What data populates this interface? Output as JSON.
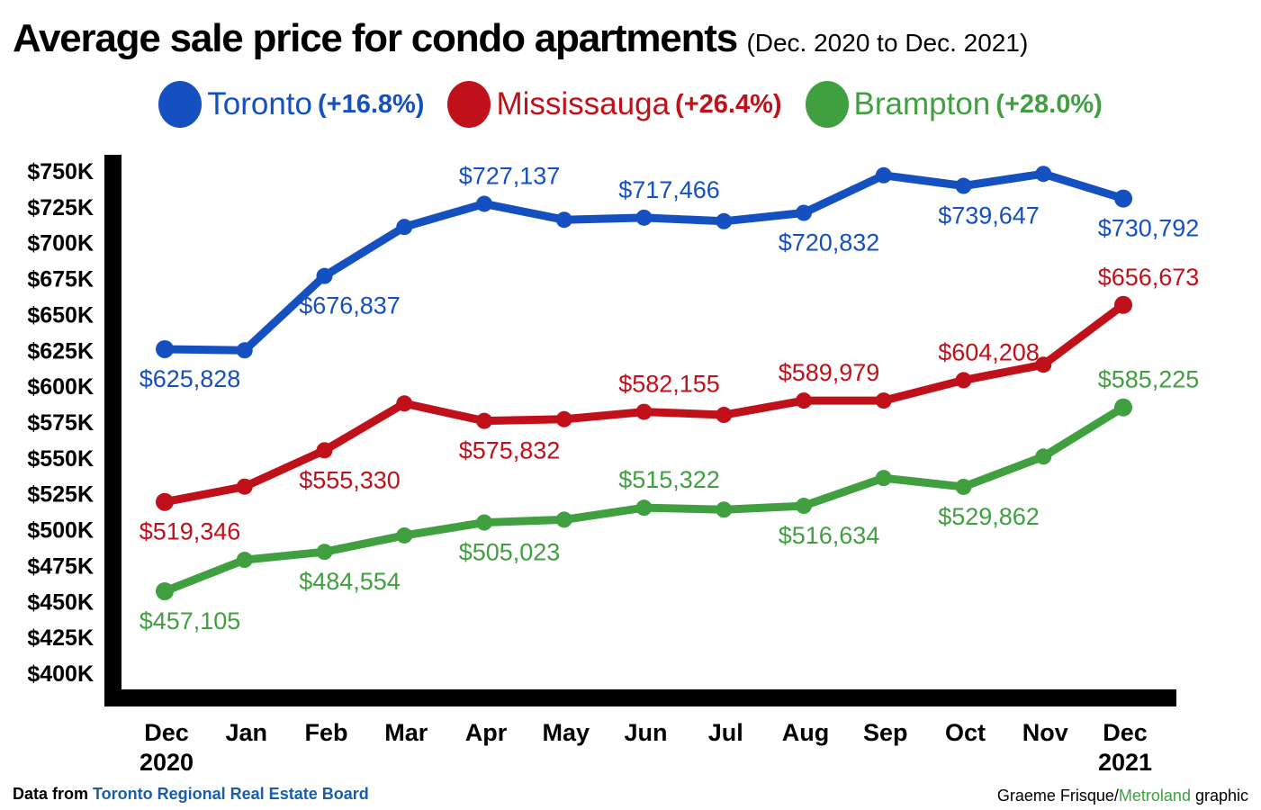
{
  "header": {
    "title": "Average sale price for condo apartments",
    "subtitle": "(Dec. 2020 to Dec. 2021)"
  },
  "legend": [
    {
      "name": "Toronto",
      "change": "(+16.8%)",
      "color": "#1450c0"
    },
    {
      "name": "Mississauga",
      "change": "(+26.4%)",
      "color": "#c0101a"
    },
    {
      "name": "Brampton",
      "change": "(+28.0%)",
      "color": "#40a040"
    }
  ],
  "footer": {
    "source_prefix": "Data from ",
    "source_name": "Toronto Regional Real Estate Board",
    "credit_author": "Graeme Frisque/",
    "credit_brand": "Metroland",
    "credit_suffix": " graphic"
  },
  "chart_data": {
    "type": "line",
    "title": "Average sale price for condo apartments",
    "subtitle": "(Dec. 2020 to Dec. 2021)",
    "xlabel": "",
    "ylabel": "",
    "categories": [
      "Dec 2020",
      "Jan",
      "Feb",
      "Mar",
      "Apr",
      "May",
      "Jun",
      "Jul",
      "Aug",
      "Sep",
      "Oct",
      "Nov",
      "Dec 2021"
    ],
    "x_tick_labels": [
      {
        "line1": "Dec",
        "line2": "2020"
      },
      {
        "line1": "Jan",
        "line2": ""
      },
      {
        "line1": "Feb",
        "line2": ""
      },
      {
        "line1": "Mar",
        "line2": ""
      },
      {
        "line1": "Apr",
        "line2": ""
      },
      {
        "line1": "May",
        "line2": ""
      },
      {
        "line1": "Jun",
        "line2": ""
      },
      {
        "line1": "Jul",
        "line2": ""
      },
      {
        "line1": "Aug",
        "line2": ""
      },
      {
        "line1": "Sep",
        "line2": ""
      },
      {
        "line1": "Oct",
        "line2": ""
      },
      {
        "line1": "Nov",
        "line2": ""
      },
      {
        "line1": "Dec",
        "line2": "2021"
      }
    ],
    "ylim": [
      400000,
      750000
    ],
    "y_ticks": [
      750000,
      725000,
      700000,
      675000,
      650000,
      625000,
      600000,
      575000,
      550000,
      525000,
      500000,
      475000,
      450000,
      425000,
      400000
    ],
    "y_tick_labels": [
      "$750K",
      "$725K",
      "$700K",
      "$675K",
      "$650K",
      "$625K",
      "$600K",
      "$575K",
      "$550K",
      "$525K",
      "$500K",
      "$475K",
      "$450K",
      "$425K",
      "$400K"
    ],
    "grid": false,
    "legend_position": "top-center",
    "series": [
      {
        "name": "Toronto",
        "change": "+16.8%",
        "color": "#1450c0",
        "values": [
          625828,
          625000,
          676837,
          711000,
          727137,
          716000,
          717466,
          715000,
          720832,
          747000,
          739647,
          748000,
          730792
        ],
        "labels": [
          {
            "index": 0,
            "text": "$625,828",
            "pos": "below"
          },
          {
            "index": 2,
            "text": "$676,837",
            "pos": "below"
          },
          {
            "index": 4,
            "text": "$727,137",
            "pos": "above"
          },
          {
            "index": 6,
            "text": "$717,466",
            "pos": "above"
          },
          {
            "index": 8,
            "text": "$720,832",
            "pos": "below"
          },
          {
            "index": 10,
            "text": "$739,647",
            "pos": "below"
          },
          {
            "index": 12,
            "text": "$730,792",
            "pos": "below"
          }
        ]
      },
      {
        "name": "Mississauga",
        "change": "+26.4%",
        "color": "#c0101a",
        "values": [
          519346,
          530000,
          555330,
          588000,
          575832,
          577000,
          582155,
          580000,
          589979,
          590000,
          604208,
          615000,
          656673
        ],
        "labels": [
          {
            "index": 0,
            "text": "$519,346",
            "pos": "below"
          },
          {
            "index": 2,
            "text": "$555,330",
            "pos": "below"
          },
          {
            "index": 4,
            "text": "$575,832",
            "pos": "below"
          },
          {
            "index": 6,
            "text": "$582,155",
            "pos": "above"
          },
          {
            "index": 8,
            "text": "$589,979",
            "pos": "above"
          },
          {
            "index": 10,
            "text": "$604,208",
            "pos": "above"
          },
          {
            "index": 12,
            "text": "$656,673",
            "pos": "above"
          }
        ]
      },
      {
        "name": "Brampton",
        "change": "+28.0%",
        "color": "#40a040",
        "values": [
          457105,
          479000,
          484554,
          496000,
          505023,
          507000,
          515322,
          514000,
          516634,
          536000,
          529862,
          551000,
          585225
        ],
        "labels": [
          {
            "index": 0,
            "text": "$457,105",
            "pos": "below"
          },
          {
            "index": 2,
            "text": "$484,554",
            "pos": "below"
          },
          {
            "index": 4,
            "text": "$505,023",
            "pos": "below"
          },
          {
            "index": 6,
            "text": "$515,322",
            "pos": "above"
          },
          {
            "index": 8,
            "text": "$516,634",
            "pos": "below"
          },
          {
            "index": 10,
            "text": "$529,862",
            "pos": "below"
          },
          {
            "index": 12,
            "text": "$585,225",
            "pos": "above"
          }
        ]
      }
    ]
  }
}
